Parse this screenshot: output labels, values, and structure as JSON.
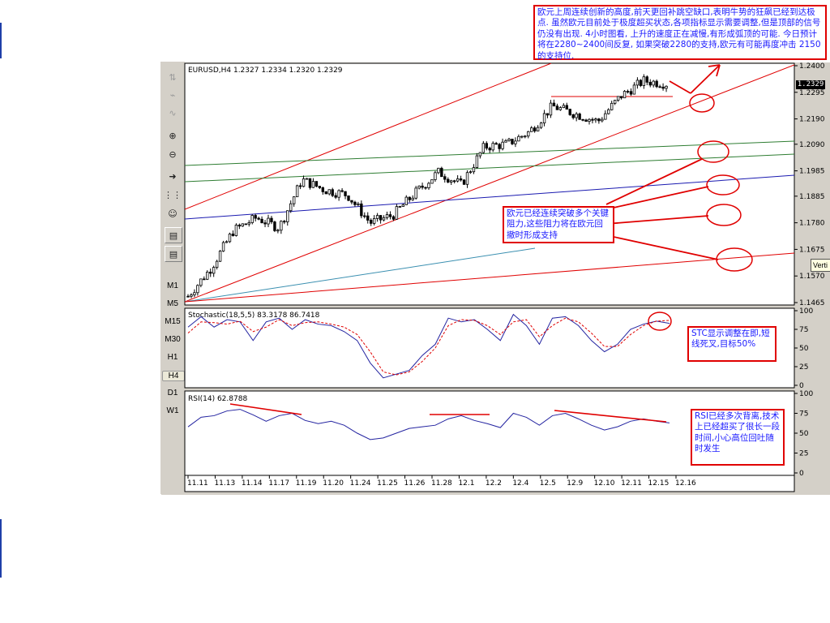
{
  "chart_data": [
    {
      "type": "candlestick",
      "panel": "main",
      "header": "EURUSD,H4  1.2327 1.2334 1.2320 1.2329",
      "symbol": "EURUSD",
      "timeframe": "H4",
      "last_price_label": "1.2329",
      "y_ticks": [
        "1.2400",
        "1.2295",
        "1.2190",
        "1.2090",
        "1.1985",
        "1.1885",
        "1.1780",
        "1.1675",
        "1.1570",
        "1.1465"
      ],
      "ylim": [
        1.1465,
        1.24
      ],
      "x_ticks": [
        "11.11",
        "11.13",
        "11.14",
        "11.17",
        "11.19",
        "11.20",
        "11.24",
        "11.25",
        "11.26",
        "11.28",
        "12.1",
        "12.2",
        "12.4",
        "12.5",
        "12.9",
        "12.10",
        "12.11",
        "12.15",
        "12.16"
      ],
      "approx_close_path": [
        1.149,
        1.16,
        1.175,
        1.18,
        1.176,
        1.195,
        1.191,
        1.189,
        1.178,
        1.181,
        1.19,
        1.198,
        1.193,
        1.208,
        1.209,
        1.214,
        1.224,
        1.221,
        1.218,
        1.228,
        1.234,
        1.2329
      ],
      "overlays": [
        "upper red channel line",
        "lower red channel line",
        "green trend lines",
        "blue trend line",
        "light-blue trend line",
        "horizontal red resistance line"
      ]
    },
    {
      "type": "line",
      "panel": "stochastic",
      "header": "Stochastic(18,5,5)  83.3178  86.7418",
      "y_ticks": [
        "100",
        "75",
        "50",
        "25",
        "0"
      ],
      "ylim": [
        0,
        100
      ],
      "series": [
        {
          "name": "%K",
          "values": [
            78,
            92,
            78,
            88,
            85,
            60,
            85,
            90,
            75,
            88,
            82,
            80,
            72,
            60,
            30,
            10,
            15,
            20,
            40,
            55,
            90,
            85,
            88,
            75,
            60,
            95,
            80,
            55,
            90,
            92,
            80,
            60,
            45,
            55,
            75,
            82,
            86,
            83
          ]
        },
        {
          "name": "%D",
          "values": [
            70,
            85,
            84,
            82,
            86,
            72,
            78,
            88,
            80,
            84,
            85,
            82,
            78,
            68,
            45,
            18,
            14,
            18,
            32,
            50,
            80,
            88,
            87,
            80,
            68,
            85,
            88,
            65,
            80,
            90,
            85,
            70,
            52,
            52,
            68,
            80,
            86,
            87
          ]
        }
      ]
    },
    {
      "type": "line",
      "panel": "rsi",
      "header": "RSI(14)  62.8788",
      "y_ticks": [
        "100",
        "75",
        "50",
        "25",
        "0"
      ],
      "ylim": [
        0,
        100
      ],
      "series": [
        {
          "name": "RSI",
          "values": [
            58,
            70,
            72,
            78,
            80,
            73,
            65,
            72,
            75,
            66,
            62,
            65,
            60,
            50,
            42,
            44,
            50,
            56,
            58,
            60,
            68,
            72,
            66,
            62,
            57,
            75,
            70,
            60,
            72,
            75,
            68,
            60,
            54,
            58,
            65,
            68,
            65,
            62.9
          ]
        }
      ]
    }
  ],
  "timeframes": [
    "M1",
    "M5",
    "M15",
    "M30",
    "H1",
    "H4",
    "D1",
    "W1"
  ],
  "active_timeframe": "H4",
  "toolbar_icons": [
    "cursor-icon",
    "line-tool-icon",
    "wave-tool-icon",
    "zoom-in-icon",
    "zoom-out-icon",
    "chart-shift-icon",
    "autoscroll-icon",
    "expert-icon",
    "templates-icon",
    "periodicity-icon"
  ],
  "notes": {
    "top": "欧元上周连续创新的高度,前天更回补跳空缺口,表明牛势的狂飙已经到达极点. 虽然欧元目前处于极度超买状态,各项指标显示需要调整,但是顶部的信号仍没有出现. 4小时图看, 上升的速度正在减慢,有形成弧顶的可能. 今日预计将在2280~2400间反复, 如果突破2280的支持,欧元有可能再度冲击 2150的支持位.",
    "middle": "欧元已经连续突破多个关键阻力,这些阻力将在欧元回撤时形成支持",
    "stochastic": "STC显示调整在即,短线死叉,目标50%",
    "rsi": "RSI已经多次背离,技术上已经超买了很长一段时间,小心高位回吐随时发生"
  },
  "vert_label": "Verti",
  "colors": {
    "up": "#000000",
    "down": "#000000",
    "channel": "#e00000",
    "stoch_k": "#2323a0",
    "stoch_d": "#e00000",
    "rsi": "#2323a0",
    "note_text": "#1a1aff",
    "note_border": "#e00000"
  }
}
